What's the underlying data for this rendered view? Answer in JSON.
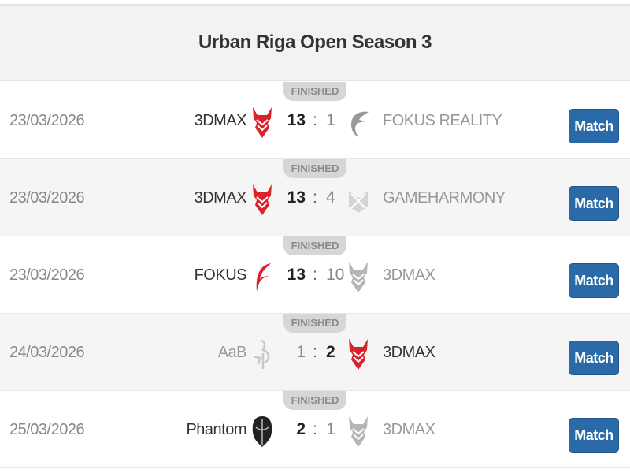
{
  "tournament": {
    "title": "Urban Riga Open Season 3"
  },
  "colors": {
    "button": "#2b6aa8",
    "demon_red": "#d9232a"
  },
  "matches": [
    {
      "date": "23/03/2026",
      "status": "FINISHED",
      "team1": "3DMAX",
      "team1_logo": "3dmax-logo",
      "score1": "13",
      "team2": "FOKUS REALITY",
      "team2_logo": "fokus-logo",
      "score2": "1",
      "winner": 1,
      "button": "Match"
    },
    {
      "date": "23/03/2026",
      "status": "FINISHED",
      "team1": "3DMAX",
      "team1_logo": "3dmax-logo",
      "score1": "13",
      "team2": "GAMEHARMONY",
      "team2_logo": "gameharmony-logo",
      "score2": "4",
      "winner": 1,
      "button": "Match"
    },
    {
      "date": "23/03/2026",
      "status": "FINISHED",
      "team1": "FOKUS",
      "team1_logo": "fokus-logo",
      "score1": "13",
      "team2": "3DMAX",
      "team2_logo": "3dmax-logo",
      "score2": "10",
      "winner": 1,
      "button": "Match"
    },
    {
      "date": "24/03/2026",
      "status": "FINISHED",
      "team1": "AaB",
      "team1_logo": "aab-logo",
      "score1": "1",
      "team2": "3DMAX",
      "team2_logo": "3dmax-logo",
      "score2": "2",
      "winner": 2,
      "button": "Match"
    },
    {
      "date": "25/03/2026",
      "status": "FINISHED",
      "team1": "Phantom",
      "team1_logo": "phantom-logo",
      "score1": "2",
      "team2": "3DMAX",
      "team2_logo": "3dmax-logo",
      "score2": "1",
      "winner": 1,
      "button": "Match"
    }
  ]
}
